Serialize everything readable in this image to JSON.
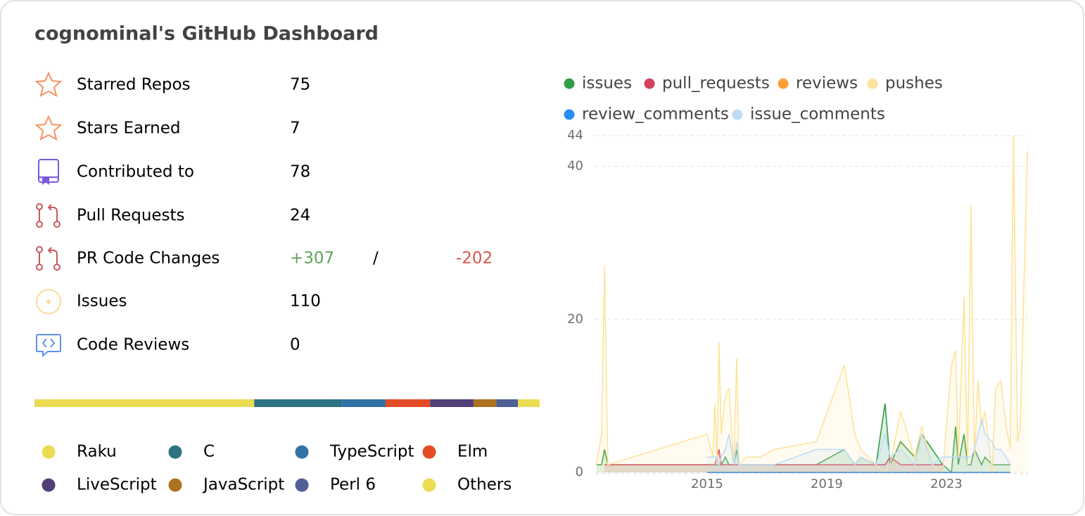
{
  "header": {
    "title": "cognominal's GitHub Dashboard"
  },
  "stats": [
    {
      "label": "Starred Repos",
      "value": 75
    },
    {
      "label": "Stars Earned",
      "value": 7
    },
    {
      "label": "Contributed to",
      "value": 78
    },
    {
      "label": "Pull Requests",
      "value": 24
    },
    {
      "label": "PR Code Changes",
      "additions": "+307",
      "separator": "/",
      "deletions": "-202"
    },
    {
      "label": "Issues",
      "value": 110
    },
    {
      "label": "Code Reviews",
      "value": 0
    }
  ],
  "languages": [
    {
      "name": "Raku",
      "color": "#ecdc54",
      "share": 43.5
    },
    {
      "name": "C",
      "color": "#2e7283",
      "share": 17.4
    },
    {
      "name": "TypeScript",
      "color": "#3372a6",
      "share": 8.6
    },
    {
      "name": "Elm",
      "color": "#e34c26",
      "share": 8.8
    },
    {
      "name": "LiveScript",
      "color": "#523f78",
      "share": 8.6
    },
    {
      "name": "JavaScript",
      "color": "#ad7220",
      "share": 4.5
    },
    {
      "name": "Perl 6",
      "color": "#505f95",
      "share": 4.3
    },
    {
      "name": "Others",
      "color": "#ecdc54",
      "share": 4.3
    }
  ],
  "chart_data": {
    "type": "line",
    "x": [
      2011.3,
      2011.47,
      2011.57,
      2011.68,
      2015.0,
      2015.19,
      2015.26,
      2015.33,
      2015.4,
      2015.47,
      2015.61,
      2015.73,
      2015.89,
      2015.99,
      2016.06,
      2016.3,
      2016.77,
      2017.24,
      2018.65,
      2019.59,
      2019.94,
      2020.13,
      2020.65,
      2020.95,
      2021.12,
      2021.47,
      2021.94,
      2022.18,
      2022.53,
      2022.88,
      2023.17,
      2023.31,
      2023.4,
      2023.59,
      2023.71,
      2023.82,
      2023.94,
      2024.06,
      2024.18,
      2024.29,
      2024.53,
      2024.65,
      2024.82,
      2025.0,
      2025.14,
      2025.24,
      2025.38,
      2025.47,
      2025.71
    ],
    "xlim": [
      2011.26,
      2025.73
    ],
    "xticks": [
      2015,
      2019,
      2023
    ],
    "ylim": [
      0,
      44
    ],
    "yticks": [
      0,
      20,
      40,
      44
    ],
    "grid": true,
    "series": [
      {
        "name": "issues",
        "color": "#2f9e44",
        "values": [
          1,
          1,
          3,
          1,
          1,
          1,
          1,
          1,
          1,
          1,
          2,
          1,
          1,
          3,
          1,
          1,
          1,
          1,
          1,
          3,
          1,
          2,
          1,
          9,
          1,
          4,
          2,
          5,
          3,
          1,
          0,
          6,
          1,
          5,
          1,
          1,
          3,
          2,
          1,
          2,
          1,
          1,
          1,
          1,
          1,
          null,
          null,
          null,
          null
        ]
      },
      {
        "name": "pull_requests",
        "color": "#d6405c",
        "values": [
          null,
          null,
          1,
          1,
          1,
          1,
          1,
          2,
          3,
          1,
          1,
          1,
          1,
          1,
          1,
          1,
          1,
          1,
          1,
          1,
          1,
          1,
          1,
          1,
          2,
          1,
          1,
          1,
          1,
          1,
          null,
          null,
          null,
          null,
          null,
          null,
          null,
          null,
          null,
          null,
          null,
          null,
          null,
          null,
          null,
          null,
          null,
          null,
          null
        ]
      },
      {
        "name": "reviews",
        "color": "#ff9f36",
        "values": [
          null,
          null,
          null,
          null,
          0,
          0,
          0,
          0,
          0,
          0,
          0,
          0,
          0,
          0,
          0,
          0,
          0,
          0,
          0,
          0,
          0,
          0,
          0,
          0,
          0,
          0,
          0,
          0,
          0,
          0,
          0,
          0,
          0,
          0,
          0,
          0,
          0,
          0,
          0,
          0,
          0,
          0,
          0,
          0,
          0,
          null,
          null,
          null,
          null
        ]
      },
      {
        "name": "pushes",
        "color": "#fde49c",
        "values": [
          1,
          5,
          27,
          1,
          5,
          2,
          9,
          1,
          17,
          5,
          10,
          11,
          1,
          15,
          1,
          2,
          2,
          3,
          4,
          14,
          5,
          3,
          1,
          0,
          1,
          8,
          2,
          6,
          1,
          0,
          14,
          16,
          2,
          23,
          1,
          35,
          2,
          12,
          6,
          8,
          0,
          11,
          12,
          6,
          3,
          44,
          4,
          6,
          42
        ]
      },
      {
        "name": "review_comments",
        "color": "#2b8cf2",
        "values": [
          null,
          null,
          null,
          null,
          0,
          0,
          0,
          0,
          0,
          0,
          0,
          0,
          0,
          0,
          0,
          0,
          0,
          0,
          0,
          0,
          0,
          0,
          0,
          0,
          0,
          0,
          0,
          0,
          0,
          0,
          0,
          0,
          0,
          0,
          0,
          0,
          0,
          0,
          0,
          0,
          0,
          0,
          0,
          0,
          0,
          null,
          null,
          null,
          null
        ]
      },
      {
        "name": "issue_comments",
        "color": "#bfdcf7",
        "values": [
          null,
          null,
          null,
          null,
          2,
          2,
          2,
          2,
          1,
          2,
          3,
          5,
          1,
          4,
          1,
          1,
          1,
          1,
          3,
          3,
          1,
          2,
          1,
          5,
          2,
          3,
          1,
          5,
          1,
          2,
          2,
          2,
          2,
          2,
          2,
          2,
          3,
          5,
          7,
          5,
          4,
          3,
          3,
          2,
          1,
          null,
          null,
          null,
          null
        ]
      }
    ]
  }
}
